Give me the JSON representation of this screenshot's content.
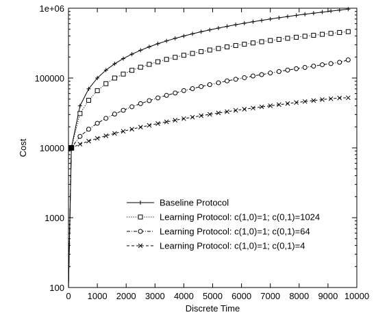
{
  "chart_data": {
    "type": "line",
    "title": "",
    "xlabel": "Discrete Time",
    "ylabel": "Cost",
    "xlim": [
      0,
      10000
    ],
    "ylim": [
      100,
      1000000
    ],
    "yscale": "log",
    "grid": false,
    "legend_position": "bottom-right",
    "x_ticks": [
      0,
      1000,
      2000,
      3000,
      4000,
      5000,
      6000,
      7000,
      8000,
      9000,
      10000
    ],
    "x_tick_labels": [
      "0",
      "1000",
      "2000",
      "3000",
      "4000",
      "5000",
      "6000",
      "7000",
      "8000",
      "9000",
      "10000"
    ],
    "y_ticks": [
      100,
      1000,
      10000,
      100000,
      1000000
    ],
    "y_tick_labels": [
      "100",
      "1000",
      "10000",
      "100000",
      "1e+06"
    ],
    "series": [
      {
        "name": "Baseline Protocol",
        "line_style": "solid",
        "marker": "plus",
        "x": [
          0,
          100,
          400,
          700,
          1000,
          1300,
          1600,
          1900,
          2200,
          2500,
          2800,
          3100,
          3400,
          3700,
          4000,
          4300,
          4600,
          4900,
          5200,
          5500,
          5800,
          6100,
          6400,
          6700,
          7000,
          7300,
          7600,
          7900,
          8200,
          8500,
          8800,
          9100,
          9400,
          9700
        ],
        "y": [
          100,
          10000,
          40000,
          70000,
          100000,
          130000,
          160000,
          190000,
          220000,
          250000,
          280000,
          310000,
          340000,
          370000,
          400000,
          430000,
          460000,
          490000,
          520000,
          550000,
          580000,
          610000,
          640000,
          670000,
          700000,
          730000,
          760000,
          790000,
          820000,
          850000,
          880000,
          910000,
          940000,
          970000
        ]
      },
      {
        "name": "Learning Protocol: c(1,0)=1; c(0,1)=1024",
        "line_style": "dotted",
        "marker": "square",
        "x": [
          0,
          100,
          400,
          700,
          1000,
          1300,
          1600,
          1900,
          2200,
          2500,
          2800,
          3100,
          3400,
          3700,
          4000,
          4300,
          4600,
          4900,
          5200,
          5500,
          5800,
          6100,
          6400,
          6700,
          7000,
          7300,
          7600,
          7900,
          8200,
          8500,
          8800,
          9100,
          9400,
          9700
        ],
        "y": [
          100,
          10000,
          31000,
          48000,
          66000,
          83000,
          100000,
          114000,
          129000,
          143000,
          157000,
          171000,
          185000,
          198000,
          212000,
          225000,
          239000,
          252000,
          265000,
          279000,
          292000,
          305000,
          318000,
          331000,
          345000,
          358000,
          371000,
          384000,
          397000,
          410000,
          423000,
          436000,
          449000,
          462000
        ]
      },
      {
        "name": "Learning Protocol: c(1,0)=1; c(0,1)=64",
        "line_style": "dashdot",
        "marker": "circle",
        "x": [
          0,
          100,
          400,
          700,
          1000,
          1300,
          1600,
          1900,
          2200,
          2500,
          2800,
          3100,
          3400,
          3700,
          4000,
          4300,
          4600,
          4900,
          5200,
          5500,
          5800,
          6100,
          6400,
          6700,
          7000,
          7300,
          7600,
          7900,
          8200,
          8500,
          8800,
          9100,
          9400,
          9700
        ],
        "y": [
          100,
          10000,
          14600,
          18500,
          22500,
          26500,
          30500,
          34500,
          38800,
          43000,
          47500,
          52000,
          56500,
          61000,
          66000,
          70500,
          75500,
          80500,
          85500,
          91000,
          96000,
          101000,
          107000,
          112000,
          118000,
          124000,
          130000,
          136000,
          142000,
          148000,
          155000,
          161000,
          168000,
          182000
        ]
      },
      {
        "name": "Learning Protocol: c(1,0)=1; c(0,1)=4",
        "line_style": "dashed",
        "marker": "cross",
        "x": [
          0,
          100,
          400,
          700,
          1000,
          1300,
          1600,
          1900,
          2200,
          2500,
          2800,
          3100,
          3400,
          3700,
          4000,
          4300,
          4600,
          4900,
          5200,
          5500,
          5800,
          6100,
          6400,
          6700,
          7000,
          7300,
          7600,
          7900,
          8200,
          8500,
          8800,
          9100,
          9400,
          9700
        ],
        "y": [
          100,
          10000,
          11300,
          12500,
          13700,
          14900,
          16100,
          17300,
          18500,
          19800,
          21000,
          22300,
          23600,
          24900,
          26200,
          27500,
          28900,
          30200,
          31600,
          33000,
          34400,
          35800,
          37200,
          38700,
          40100,
          41600,
          43100,
          44600,
          46100,
          47600,
          49100,
          50600,
          51800,
          52200
        ]
      }
    ]
  }
}
